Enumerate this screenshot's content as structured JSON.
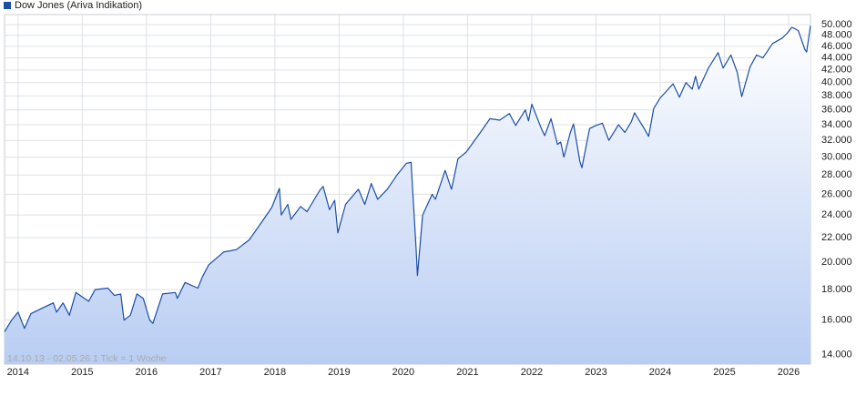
{
  "chart_data": {
    "type": "line",
    "footnote": "14.10.13 - 02.05.26   1 Tick = 1 Woche",
    "log_scale": true,
    "grid": true,
    "legend": "top-left",
    "x": [
      2013.79,
      2013.9,
      2014.0,
      2014.1,
      2014.2,
      2014.4,
      2014.55,
      2014.6,
      2014.7,
      2014.8,
      2014.9,
      2015.0,
      2015.1,
      2015.2,
      2015.4,
      2015.5,
      2015.6,
      2015.65,
      2015.75,
      2015.85,
      2015.95,
      2016.05,
      2016.1,
      2016.25,
      2016.45,
      2016.48,
      2016.6,
      2016.8,
      2016.87,
      2016.97,
      2017.2,
      2017.4,
      2017.6,
      2017.8,
      2017.95,
      2018.07,
      2018.1,
      2018.2,
      2018.25,
      2018.4,
      2018.5,
      2018.7,
      2018.75,
      2018.85,
      2018.93,
      2018.98,
      2019.1,
      2019.3,
      2019.4,
      2019.5,
      2019.6,
      2019.75,
      2019.9,
      2020.05,
      2020.12,
      2020.2,
      2020.22,
      2020.3,
      2020.45,
      2020.5,
      2020.65,
      2020.75,
      2020.85,
      2020.98,
      2021.2,
      2021.35,
      2021.5,
      2021.65,
      2021.75,
      2021.9,
      2021.95,
      2022.0,
      2022.15,
      2022.2,
      2022.3,
      2022.4,
      2022.45,
      2022.5,
      2022.6,
      2022.65,
      2022.75,
      2022.78,
      2022.9,
      2023.0,
      2023.1,
      2023.2,
      2023.35,
      2023.45,
      2023.55,
      2023.6,
      2023.75,
      2023.82,
      2023.9,
      2024.0,
      2024.2,
      2024.3,
      2024.4,
      2024.5,
      2024.55,
      2024.6,
      2024.75,
      2024.9,
      2024.98,
      2025.1,
      2025.2,
      2025.27,
      2025.4,
      2025.5,
      2025.6,
      2025.75,
      2025.9,
      2025.98,
      2026.05,
      2026.15,
      2026.25,
      2026.28,
      2026.34
    ],
    "series": [
      {
        "name": "Dow Jones (Ariva Indikation)",
        "color": "#1a4ea8",
        "values": [
          15300,
          16000,
          16500,
          15500,
          16400,
          16800,
          17100,
          16500,
          17100,
          16300,
          17800,
          17500,
          17200,
          18000,
          18100,
          17600,
          17700,
          16000,
          16300,
          17700,
          17400,
          16000,
          15800,
          17700,
          17800,
          17400,
          18500,
          18100,
          18900,
          19800,
          20800,
          21000,
          21800,
          23400,
          24700,
          26600,
          24000,
          25000,
          23600,
          24800,
          24300,
          26400,
          26800,
          24500,
          25400,
          22400,
          25000,
          26500,
          25000,
          27100,
          25500,
          26500,
          28000,
          29300,
          29400,
          21000,
          19000,
          24000,
          26000,
          25500,
          28500,
          26500,
          29800,
          30600,
          33000,
          34800,
          34600,
          35500,
          33900,
          36000,
          34500,
          36800,
          33500,
          32600,
          34800,
          31500,
          31800,
          30000,
          33000,
          34100,
          29500,
          28800,
          33500,
          33900,
          34200,
          32000,
          34000,
          33000,
          34400,
          35600,
          33500,
          32500,
          36200,
          37700,
          39800,
          37800,
          40000,
          39000,
          41000,
          39000,
          42300,
          44900,
          42300,
          44500,
          41600,
          37900,
          42500,
          44500,
          44000,
          46500,
          47500,
          48400,
          49500,
          48900,
          45500,
          45000,
          49800
        ]
      }
    ],
    "xlim": [
      2013.79,
      2026.34
    ],
    "xticks": [
      2014,
      2015,
      2016,
      2017,
      2018,
      2019,
      2020,
      2021,
      2022,
      2023,
      2024,
      2025,
      2026
    ],
    "ylim": [
      13500,
      52000
    ],
    "yticks": [
      {
        "value": 14000,
        "label": "14.000"
      },
      {
        "value": 16000,
        "label": "16.000"
      },
      {
        "value": 18000,
        "label": "18.000"
      },
      {
        "value": 20000,
        "label": "20.000"
      },
      {
        "value": 22000,
        "label": "22.000"
      },
      {
        "value": 24000,
        "label": "24.000"
      },
      {
        "value": 26000,
        "label": "26.000"
      },
      {
        "value": 28000,
        "label": "28.000"
      },
      {
        "value": 30000,
        "label": "30.000"
      },
      {
        "value": 32000,
        "label": "32.000"
      },
      {
        "value": 34000,
        "label": "34.000"
      },
      {
        "value": 36000,
        "label": "36.000"
      },
      {
        "value": 38000,
        "label": "38.000"
      },
      {
        "value": 40000,
        "label": "40.000"
      },
      {
        "value": 42000,
        "label": "42.000"
      },
      {
        "value": 44000,
        "label": "44.000"
      },
      {
        "value": 46000,
        "label": "46.000"
      },
      {
        "value": 48000,
        "label": "48.000"
      },
      {
        "value": 50000,
        "label": "50.000"
      }
    ]
  }
}
